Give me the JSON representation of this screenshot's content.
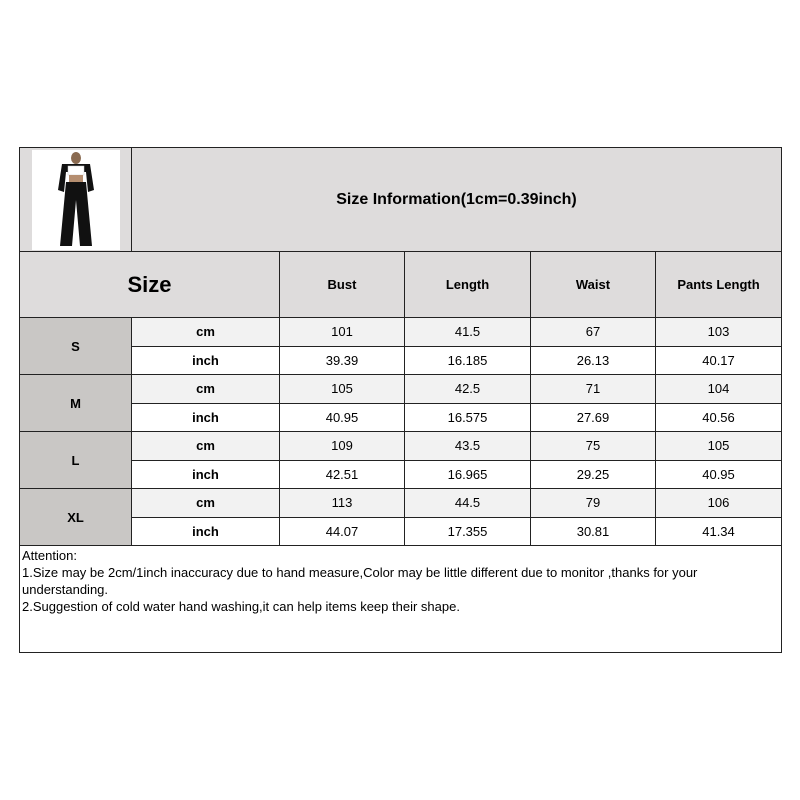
{
  "title": "Size Information(1cm=0.39inch)",
  "size_header": "Size",
  "columns": [
    "Bust",
    "Length",
    "Waist",
    "Pants Length"
  ],
  "rows": [
    {
      "size": "S",
      "cm": {
        "unit": "cm",
        "values": [
          "101",
          "41.5",
          "67",
          "103"
        ]
      },
      "inch": {
        "unit": "inch",
        "values": [
          "39.39",
          "16.185",
          "26.13",
          "40.17"
        ]
      }
    },
    {
      "size": "M",
      "cm": {
        "unit": "cm",
        "values": [
          "105",
          "42.5",
          "71",
          "104"
        ]
      },
      "inch": {
        "unit": "inch",
        "values": [
          "40.95",
          "16.575",
          "27.69",
          "40.56"
        ]
      }
    },
    {
      "size": "L",
      "cm": {
        "unit": "cm",
        "values": [
          "109",
          "43.5",
          "75",
          "105"
        ]
      },
      "inch": {
        "unit": "inch",
        "values": [
          "42.51",
          "16.965",
          "29.25",
          "40.95"
        ]
      }
    },
    {
      "size": "XL",
      "cm": {
        "unit": "cm",
        "values": [
          "113",
          "44.5",
          "79",
          "106"
        ]
      },
      "inch": {
        "unit": "inch",
        "values": [
          "44.07",
          "17.355",
          "30.81",
          "41.34"
        ]
      }
    }
  ],
  "attention": {
    "heading": "Attention:",
    "lines": [
      "1.Size may be 2cm/1inch inaccuracy due to hand measure,Color may be little different due to monitor ,thanks for your understanding.",
      "2.Suggestion of cold water hand washing,it can help items keep their shape."
    ]
  }
}
